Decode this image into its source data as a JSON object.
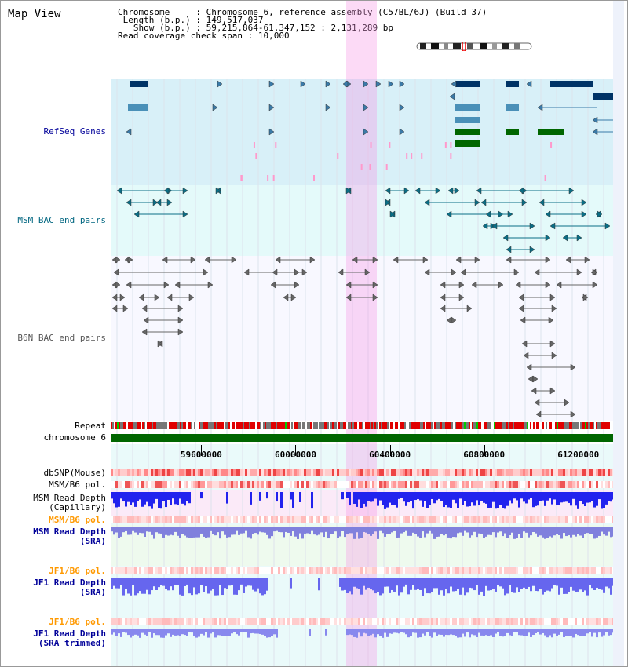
{
  "app": {
    "title": "Map View"
  },
  "info": {
    "chromosome_key": "Chromosome",
    "chromosome_value": "Chromosome 6, reference assembly (C57BL/6J) (Build 37)",
    "length_key": "Length (b.p.)",
    "length_value": "149,517,037",
    "show_key": "Show (b.p.)",
    "show_value": "59,215,864-61,347,152 : 2,131,289 bp",
    "coverage_key": "Read coverage check span",
    "coverage_value": "10,000"
  },
  "region": {
    "start": 59215864,
    "end": 61347152,
    "highlight_start": 60215000,
    "highlight_end": 60345000
  },
  "ruler": {
    "ticks": [
      59600000,
      60000000,
      60400000,
      60800000,
      61200000
    ],
    "labels": [
      "59600000",
      "60000000",
      "60400000",
      "60800000",
      "61200000"
    ]
  },
  "tracks": {
    "refseq": {
      "label": "RefSeq Genes",
      "color": "#000099",
      "bg": "#d8f0f8"
    },
    "msm_bac": {
      "label": "MSM BAC end pairs",
      "color": "#006680",
      "bg": "#e4fafa"
    },
    "b6n_bac": {
      "label": "B6N BAC end pairs",
      "color": "#555555"
    },
    "repeat": {
      "label": "Repeat"
    },
    "chromosome": {
      "label": "chromosome 6",
      "color": "#006600"
    },
    "dbsnp": {
      "label": "dbSNP(Mouse)"
    },
    "msm_b6_pol": {
      "label": "MSM/B6 pol."
    },
    "msm_depth_cap": {
      "label_1": "MSM Read Depth",
      "label_2": "(Capillary)"
    },
    "msm_b6_pol_sra": {
      "label": "MSM/B6 pol.",
      "color": "#ff9900"
    },
    "msm_depth_sra": {
      "label_1": "MSM Read Depth",
      "label_2": "(SRA)",
      "color": "#000099"
    },
    "jf1_b6_pol": {
      "label": "JF1/B6 pol.",
      "color": "#ff9900"
    },
    "jf1_depth_sra": {
      "label_1": "JF1 Read Depth",
      "label_2": "(SRA)",
      "color": "#000099"
    },
    "jf1_b6_pol_trim": {
      "label": "JF1/B6 pol.",
      "color": "#ff9900"
    },
    "jf1_depth_trim": {
      "label_1": "JF1 Read Depth",
      "label_2": "(SRA trimmed)",
      "color": "#000099"
    }
  }
}
